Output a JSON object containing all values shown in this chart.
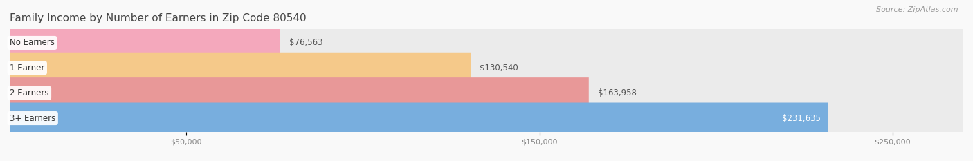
{
  "title": "Family Income by Number of Earners in Zip Code 80540",
  "source": "Source: ZipAtlas.com",
  "categories": [
    "No Earners",
    "1 Earner",
    "2 Earners",
    "3+ Earners"
  ],
  "values": [
    76563,
    130540,
    163958,
    231635
  ],
  "bar_colors": [
    "#f4a8bc",
    "#f5c98a",
    "#e89898",
    "#78aede"
  ],
  "bar_bg_color": "#ebebeb",
  "label_colors": [
    "#555555",
    "#555555",
    "#555555",
    "#ffffff"
  ],
  "xlim_max": 270000,
  "xticks": [
    50000,
    150000,
    250000
  ],
  "xtick_labels": [
    "$50,000",
    "$150,000",
    "$250,000"
  ],
  "background_color": "#f9f9f9",
  "bar_height": 0.62,
  "title_fontsize": 11,
  "source_fontsize": 8,
  "value_fontsize": 8.5,
  "category_fontsize": 8.5
}
